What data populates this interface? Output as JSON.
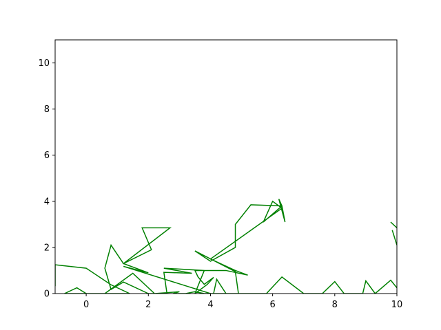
{
  "chart_data": {
    "type": "line",
    "title": "",
    "xlabel": "",
    "ylabel": "",
    "xlim": [
      -1,
      10
    ],
    "ylim": [
      0,
      11
    ],
    "xticks": [
      "0",
      "2",
      "4",
      "6",
      "8",
      "10"
    ],
    "xtick_values": [
      0,
      2,
      4,
      6,
      8,
      10
    ],
    "yticks": [
      "0",
      "2",
      "4",
      "6",
      "8",
      "10"
    ],
    "ytick_values": [
      0,
      2,
      4,
      6,
      8,
      10
    ],
    "grid": false,
    "series": [
      {
        "color": "#008000",
        "points": [
          [
            -1.0,
            0.32
          ],
          [
            -1.0,
            1.25
          ],
          [
            0.0,
            1.1
          ],
          [
            0.8,
            0.38
          ],
          [
            1.4,
            0.0
          ],
          [
            -0.7,
            0.0
          ],
          [
            -0.3,
            0.25
          ],
          [
            0.0,
            0.0
          ],
          [
            0.6,
            0.0
          ],
          [
            1.5,
            0.88
          ],
          [
            2.2,
            0.0
          ],
          [
            3.0,
            0.08
          ],
          [
            2.8,
            0.0
          ],
          [
            3.2,
            0.0
          ],
          [
            3.5,
            0.08
          ],
          [
            3.8,
            0.0
          ],
          [
            4.1,
            0.0
          ],
          [
            4.2,
            0.62
          ],
          [
            4.5,
            0.0
          ],
          [
            4.9,
            0.0
          ],
          [
            4.8,
            0.95
          ],
          [
            3.5,
            1.85
          ],
          [
            4.0,
            1.4
          ],
          [
            4.8,
            2.0
          ],
          [
            4.8,
            3.0
          ],
          [
            5.3,
            3.85
          ],
          [
            6.3,
            3.8
          ],
          [
            6.4,
            3.1
          ],
          [
            6.2,
            4.1
          ],
          [
            6.3,
            3.8
          ],
          [
            5.7,
            3.1
          ],
          [
            6.0,
            4.0
          ],
          [
            6.3,
            3.7
          ],
          [
            4.0,
            1.5
          ],
          [
            4.8,
            1.0
          ],
          [
            5.2,
            0.8
          ],
          [
            4.5,
            1.0
          ],
          [
            3.5,
            1.0
          ],
          [
            3.6,
            0.72
          ],
          [
            3.8,
            0.4
          ],
          [
            4.1,
            0.7
          ],
          [
            3.9,
            0.4
          ],
          [
            3.5,
            0.0
          ],
          [
            3.8,
            1.0
          ],
          [
            2.5,
            1.1
          ],
          [
            3.4,
            0.88
          ],
          [
            2.5,
            0.92
          ],
          [
            2.6,
            0.0
          ],
          [
            2.0,
            0.0
          ],
          [
            1.2,
            0.5
          ],
          [
            0.8,
            0.18
          ],
          [
            0.6,
            1.1
          ],
          [
            0.8,
            2.1
          ],
          [
            1.2,
            1.3
          ],
          [
            2.1,
            1.9
          ],
          [
            1.8,
            2.85
          ],
          [
            2.7,
            2.85
          ],
          [
            2.7,
            2.85
          ],
          [
            1.2,
            1.3
          ],
          [
            2.0,
            0.9
          ],
          [
            1.2,
            1.18
          ],
          [
            4.0,
            0.0
          ],
          [
            5.8,
            0.0
          ],
          [
            6.3,
            0.72
          ],
          [
            7.0,
            0.0
          ],
          [
            7.4,
            0.0
          ],
          [
            7.6,
            0.0
          ],
          [
            8.0,
            0.52
          ],
          [
            8.3,
            0.0
          ],
          [
            8.9,
            0.0
          ],
          [
            9.0,
            0.55
          ],
          [
            9.3,
            0.0
          ],
          [
            9.8,
            0.58
          ],
          [
            10.0,
            0.25
          ]
        ]
      },
      {
        "color": "#008000",
        "points": [
          [
            9.8,
            3.1
          ],
          [
            10.0,
            2.85
          ]
        ]
      },
      {
        "color": "#008000",
        "points": [
          [
            10.0,
            2.1
          ],
          [
            9.85,
            2.75
          ]
        ]
      }
    ]
  }
}
